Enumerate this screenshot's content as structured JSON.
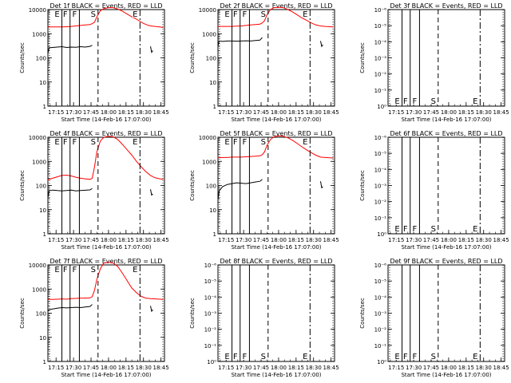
{
  "shared": {
    "xlabel": "Start Time (14-Feb-16 17:07:00)",
    "ylabel": "Counts/sec",
    "x_ticks": [
      "17:15",
      "17:30",
      "17:45",
      "18:00",
      "18:15",
      "18:30",
      "18:45"
    ],
    "x_range_min": [
      8,
      108
    ],
    "x_tick_min": [
      15,
      30,
      45,
      60,
      75,
      90,
      105
    ],
    "colors": {
      "events": "#000000",
      "lld": "#ff0000",
      "axes": "#000000"
    },
    "event_lines": [
      {
        "label": "E",
        "x_min": 20,
        "style": "solid"
      },
      {
        "label": "F",
        "x_min": 27,
        "style": "solid"
      },
      {
        "label": "F",
        "x_min": 35,
        "style": "solid"
      },
      {
        "label": "S",
        "x_min": 51,
        "style": "dashed"
      },
      {
        "label": "E",
        "x_min": 87,
        "style": "dashdot"
      }
    ],
    "edge_lines_min": [
      8,
      108
    ]
  },
  "chart_data": [
    {
      "id": "det1",
      "title": "Det 1f BLACK = Events, RED = LLD",
      "type": "line",
      "yscale": "log",
      "yticks": [
        "1",
        "10",
        "100",
        "1000",
        "10000"
      ],
      "ylim": [
        1,
        10000
      ],
      "has_data": true,
      "series": [
        {
          "name": "Events",
          "color": "#000000",
          "points": [
            [
              8,
              150
            ],
            [
              9,
              260
            ],
            [
              12,
              270
            ],
            [
              16,
              280
            ],
            [
              20,
              290
            ],
            [
              24,
              270
            ],
            [
              28,
              280
            ],
            [
              32,
              275
            ],
            [
              36,
              290
            ],
            [
              40,
              280
            ],
            [
              44,
              300
            ],
            [
              46,
              330
            ]
          ],
          "tail": [
            [
              96,
              300
            ],
            [
              97,
              170
            ],
            [
              98,
              200
            ]
          ]
        },
        {
          "name": "LLD",
          "color": "#ff0000",
          "points": [
            [
              8,
              1900
            ],
            [
              12,
              1900
            ],
            [
              16,
              1900
            ],
            [
              20,
              1900
            ],
            [
              24,
              1950
            ],
            [
              28,
              2000
            ],
            [
              32,
              2100
            ],
            [
              36,
              2200
            ],
            [
              40,
              2300
            ],
            [
              44,
              2400
            ],
            [
              46,
              2600
            ],
            [
              48,
              3000
            ],
            [
              50,
              5000
            ],
            [
              53,
              9000
            ],
            [
              56,
              11000
            ],
            [
              60,
              12000
            ],
            [
              64,
              12000
            ],
            [
              68,
              10500
            ],
            [
              72,
              8500
            ],
            [
              76,
              6500
            ],
            [
              80,
              5000
            ],
            [
              84,
              4000
            ],
            [
              88,
              3000
            ],
            [
              92,
              2400
            ],
            [
              96,
              2100
            ],
            [
              100,
              2000
            ],
            [
              104,
              1900
            ],
            [
              107,
              1800
            ]
          ]
        }
      ]
    },
    {
      "id": "det2",
      "title": "Det 2f BLACK = Events, RED = LLD",
      "type": "line",
      "yscale": "log",
      "yticks": [
        "1",
        "10",
        "100",
        "1000",
        "10000"
      ],
      "ylim": [
        1,
        10000
      ],
      "has_data": true,
      "series": [
        {
          "name": "Events",
          "color": "#000000",
          "points": [
            [
              8,
              300
            ],
            [
              9,
              500
            ],
            [
              12,
              480
            ],
            [
              16,
              500
            ],
            [
              20,
              500
            ],
            [
              24,
              490
            ],
            [
              28,
              500
            ],
            [
              32,
              510
            ],
            [
              36,
              500
            ],
            [
              40,
              520
            ],
            [
              44,
              540
            ],
            [
              46,
              700
            ]
          ],
          "tail": [
            [
              96,
              500
            ],
            [
              97,
              300
            ],
            [
              98,
              350
            ]
          ]
        },
        {
          "name": "LLD",
          "color": "#ff0000",
          "points": [
            [
              8,
              2000
            ],
            [
              12,
              2000
            ],
            [
              16,
              2000
            ],
            [
              20,
              2000
            ],
            [
              24,
              2050
            ],
            [
              28,
              2100
            ],
            [
              32,
              2200
            ],
            [
              36,
              2300
            ],
            [
              40,
              2400
            ],
            [
              44,
              2500
            ],
            [
              46,
              2800
            ],
            [
              48,
              3500
            ],
            [
              50,
              6000
            ],
            [
              53,
              10000
            ],
            [
              56,
              12000
            ],
            [
              60,
              12500
            ],
            [
              64,
              12000
            ],
            [
              68,
              10000
            ],
            [
              72,
              8000
            ],
            [
              76,
              6000
            ],
            [
              80,
              4500
            ],
            [
              84,
              3600
            ],
            [
              88,
              2800
            ],
            [
              92,
              2300
            ],
            [
              96,
              2100
            ],
            [
              100,
              2000
            ],
            [
              104,
              1950
            ],
            [
              107,
              1900
            ]
          ]
        }
      ]
    },
    {
      "id": "det3",
      "title": "Det 3f BLACK = Events, RED = LLD",
      "type": "line",
      "yscale": "log",
      "yticks": [
        "10⁰",
        "10⁻¹",
        "10⁻²",
        "10⁻³",
        "10⁻⁴",
        "10⁻⁵",
        "10⁻⁶"
      ],
      "ylim": [
        1,
        1e-06
      ],
      "has_data": false,
      "series": []
    },
    {
      "id": "det4",
      "title": "Det 4f BLACK = Events, RED = LLD",
      "type": "line",
      "yscale": "log",
      "yticks": [
        "1",
        "10",
        "100",
        "1000",
        "10000"
      ],
      "ylim": [
        1,
        10000
      ],
      "has_data": true,
      "series": [
        {
          "name": "Events",
          "color": "#000000",
          "points": [
            [
              8,
              30
            ],
            [
              9,
              60
            ],
            [
              12,
              65
            ],
            [
              16,
              62
            ],
            [
              20,
              60
            ],
            [
              24,
              62
            ],
            [
              28,
              65
            ],
            [
              32,
              60
            ],
            [
              36,
              62
            ],
            [
              40,
              64
            ],
            [
              44,
              66
            ],
            [
              46,
              75
            ]
          ],
          "tail": [
            [
              96,
              70
            ],
            [
              97,
              40
            ],
            [
              98,
              45
            ]
          ]
        },
        {
          "name": "LLD",
          "color": "#ff0000",
          "points": [
            [
              8,
              170
            ],
            [
              12,
              200
            ],
            [
              16,
              230
            ],
            [
              20,
              260
            ],
            [
              24,
              270
            ],
            [
              28,
              250
            ],
            [
              32,
              220
            ],
            [
              36,
              200
            ],
            [
              40,
              190
            ],
            [
              44,
              180
            ],
            [
              46,
              200
            ],
            [
              48,
              600
            ],
            [
              50,
              2500
            ],
            [
              53,
              7000
            ],
            [
              56,
              10000
            ],
            [
              60,
              11000
            ],
            [
              64,
              10500
            ],
            [
              68,
              8000
            ],
            [
              72,
              5000
            ],
            [
              76,
              3000
            ],
            [
              80,
              1800
            ],
            [
              84,
              1000
            ],
            [
              88,
              600
            ],
            [
              92,
              380
            ],
            [
              96,
              260
            ],
            [
              100,
              210
            ],
            [
              104,
              190
            ],
            [
              107,
              180
            ]
          ]
        }
      ]
    },
    {
      "id": "det5",
      "title": "Det 5f BLACK = Events, RED = LLD",
      "type": "line",
      "yscale": "log",
      "yticks": [
        "1",
        "10",
        "100",
        "1000",
        "10000"
      ],
      "ylim": [
        1,
        10000
      ],
      "has_data": true,
      "series": [
        {
          "name": "Events",
          "color": "#000000",
          "points": [
            [
              8,
              25
            ],
            [
              9,
              60
            ],
            [
              12,
              90
            ],
            [
              16,
              110
            ],
            [
              20,
              120
            ],
            [
              24,
              130
            ],
            [
              28,
              125
            ],
            [
              32,
              120
            ],
            [
              36,
              130
            ],
            [
              40,
              140
            ],
            [
              44,
              150
            ],
            [
              46,
              180
            ]
          ],
          "tail": [
            [
              96,
              150
            ],
            [
              97,
              80
            ],
            [
              98,
              90
            ]
          ]
        },
        {
          "name": "LLD",
          "color": "#ff0000",
          "points": [
            [
              8,
              1400
            ],
            [
              12,
              1450
            ],
            [
              16,
              1450
            ],
            [
              20,
              1500
            ],
            [
              24,
              1500
            ],
            [
              28,
              1500
            ],
            [
              32,
              1550
            ],
            [
              36,
              1600
            ],
            [
              40,
              1650
            ],
            [
              44,
              1700
            ],
            [
              46,
              1900
            ],
            [
              48,
              2500
            ],
            [
              50,
              4500
            ],
            [
              53,
              8000
            ],
            [
              56,
              10500
            ],
            [
              60,
              11500
            ],
            [
              64,
              11000
            ],
            [
              68,
              9500
            ],
            [
              72,
              7500
            ],
            [
              76,
              5500
            ],
            [
              80,
              4000
            ],
            [
              84,
              3000
            ],
            [
              88,
              2300
            ],
            [
              92,
              1800
            ],
            [
              96,
              1500
            ],
            [
              100,
              1450
            ],
            [
              104,
              1400
            ],
            [
              107,
              1380
            ]
          ]
        }
      ]
    },
    {
      "id": "det6",
      "title": "Det 6f BLACK = Events, RED = LLD",
      "type": "line",
      "yscale": "log",
      "yticks": [
        "10⁰",
        "10⁻¹",
        "10⁻²",
        "10⁻³",
        "10⁻⁴",
        "10⁻⁵",
        "10⁻⁶"
      ],
      "ylim": [
        1,
        1e-06
      ],
      "has_data": false,
      "series": []
    },
    {
      "id": "det7",
      "title": "Det 7f BLACK = Events, RED = LLD",
      "type": "line",
      "yscale": "log",
      "yticks": [
        "1",
        "10",
        "100",
        "1000",
        "10000"
      ],
      "ylim": [
        1,
        10000
      ],
      "has_data": true,
      "series": [
        {
          "name": "Events",
          "color": "#000000",
          "points": [
            [
              8,
              120
            ],
            [
              9,
              140
            ],
            [
              12,
              150
            ],
            [
              16,
              160
            ],
            [
              20,
              170
            ],
            [
              24,
              165
            ],
            [
              28,
              170
            ],
            [
              32,
              175
            ],
            [
              36,
              170
            ],
            [
              40,
              180
            ],
            [
              44,
              190
            ],
            [
              46,
              230
            ]
          ],
          "tail": [
            [
              96,
              200
            ],
            [
              97,
              120
            ],
            [
              98,
              140
            ]
          ]
        },
        {
          "name": "LLD",
          "color": "#ff0000",
          "points": [
            [
              8,
              380
            ],
            [
              12,
              370
            ],
            [
              16,
              380
            ],
            [
              20,
              390
            ],
            [
              24,
              380
            ],
            [
              28,
              400
            ],
            [
              32,
              410
            ],
            [
              36,
              420
            ],
            [
              40,
              420
            ],
            [
              44,
              430
            ],
            [
              46,
              480
            ],
            [
              48,
              900
            ],
            [
              50,
              2500
            ],
            [
              53,
              7000
            ],
            [
              56,
              12000
            ],
            [
              60,
              13000
            ],
            [
              64,
              12000
            ],
            [
              68,
              8500
            ],
            [
              72,
              4500
            ],
            [
              76,
              2200
            ],
            [
              80,
              1100
            ],
            [
              84,
              700
            ],
            [
              88,
              500
            ],
            [
              92,
              420
            ],
            [
              96,
              400
            ],
            [
              100,
              390
            ],
            [
              104,
              380
            ],
            [
              107,
              370
            ]
          ]
        }
      ]
    },
    {
      "id": "det8",
      "title": "Det 8f BLACK = Events, RED = LLD",
      "type": "line",
      "yscale": "log",
      "yticks": [
        "10⁰",
        "10⁻¹",
        "10⁻²",
        "10⁻³",
        "10⁻⁴",
        "10⁻⁵",
        "10⁻⁶"
      ],
      "ylim": [
        1,
        1e-06
      ],
      "has_data": false,
      "series": []
    },
    {
      "id": "det9",
      "title": "Det 9f BLACK = Events, RED = LLD",
      "type": "line",
      "yscale": "log",
      "yticks": [
        "10⁰",
        "10⁻¹",
        "10⁻²",
        "10⁻³",
        "10⁻⁴",
        "10⁻⁵",
        "10⁻⁶"
      ],
      "ylim": [
        1,
        1e-06
      ],
      "has_data": false,
      "series": []
    }
  ]
}
